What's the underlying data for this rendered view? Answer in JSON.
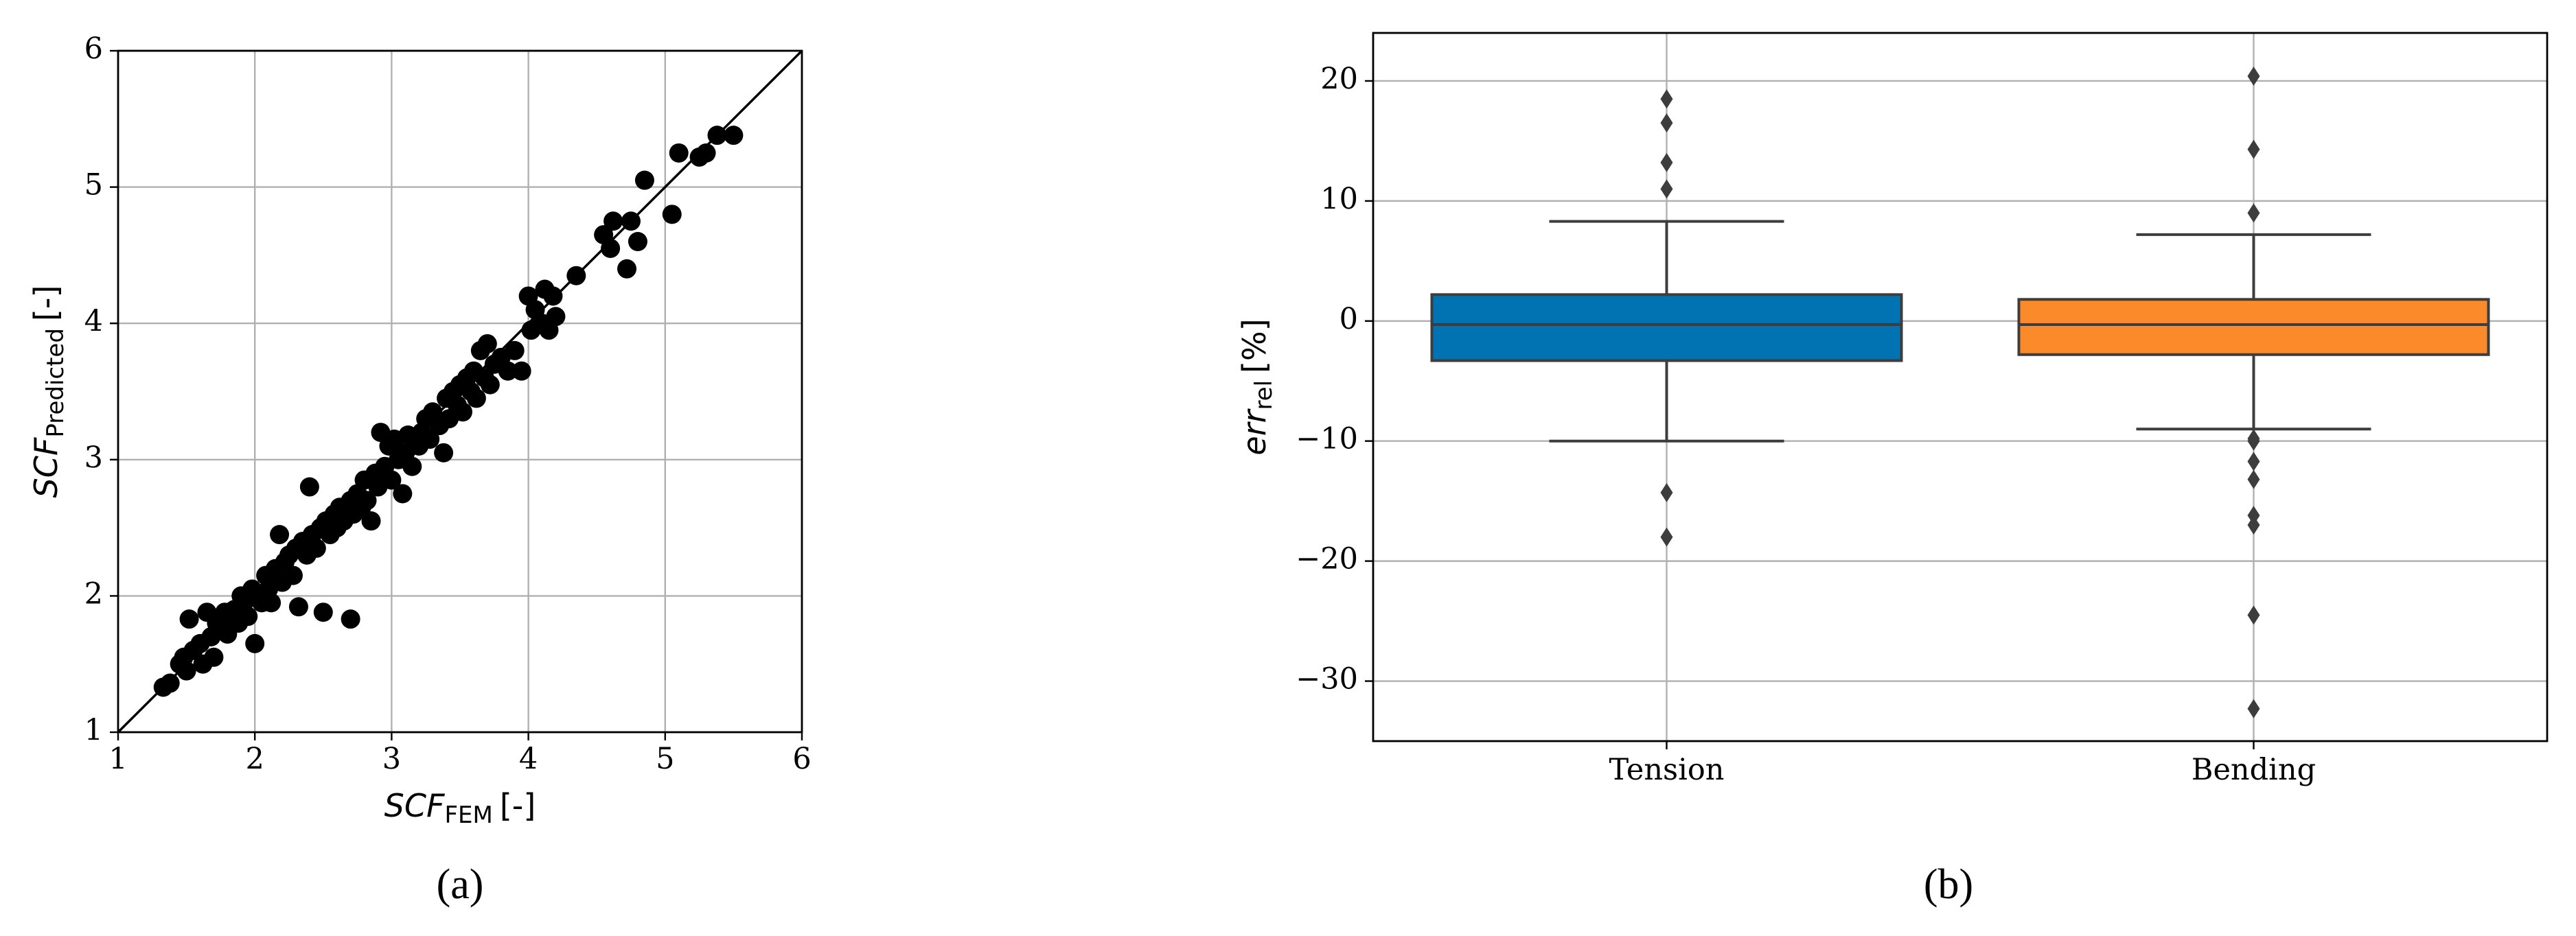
{
  "chart_data": [
    {
      "type": "scatter",
      "caption": "(a)",
      "x_label": {
        "main": "SCF",
        "sub": "FEM",
        "unit": "[-]"
      },
      "y_label": {
        "main": "SCF",
        "sub": "Predicted",
        "unit": "[-]"
      },
      "xlim": [
        1,
        6
      ],
      "ylim": [
        1,
        6
      ],
      "xticks": [
        1,
        2,
        3,
        4,
        5,
        6
      ],
      "yticks": [
        1,
        2,
        3,
        4,
        5,
        6
      ],
      "grid": true,
      "color": "#000000",
      "x": [
        1.33,
        1.38,
        1.45,
        1.48,
        1.5,
        1.52,
        1.55,
        1.6,
        1.62,
        1.65,
        1.68,
        1.7,
        1.72,
        1.75,
        1.78,
        1.8,
        1.82,
        1.85,
        1.88,
        1.9,
        1.92,
        1.95,
        1.98,
        2.0,
        2.02,
        2.05,
        2.08,
        2.1,
        2.12,
        2.15,
        2.18,
        2.2,
        2.22,
        2.25,
        2.28,
        2.3,
        2.32,
        2.35,
        2.38,
        2.4,
        2.42,
        2.45,
        2.48,
        2.5,
        2.52,
        2.55,
        2.58,
        2.6,
        2.62,
        2.65,
        2.7,
        2.7,
        2.72,
        2.75,
        2.78,
        2.8,
        2.82,
        2.85,
        2.88,
        2.9,
        2.92,
        2.95,
        2.98,
        3.0,
        3.02,
        3.05,
        3.08,
        3.1,
        3.12,
        3.15,
        3.2,
        3.22,
        3.25,
        3.28,
        3.3,
        3.35,
        3.38,
        3.4,
        3.42,
        3.45,
        3.48,
        3.5,
        3.52,
        3.55,
        3.58,
        3.6,
        3.62,
        3.65,
        3.68,
        3.7,
        3.72,
        3.75,
        3.8,
        3.85,
        3.9,
        3.95,
        4.0,
        4.02,
        4.05,
        4.1,
        4.12,
        4.15,
        4.18,
        4.2,
        4.35,
        4.55,
        4.6,
        4.62,
        4.72,
        4.75,
        4.8,
        4.85,
        5.05,
        5.1,
        5.25,
        5.3,
        5.38,
        5.5
      ],
      "values": [
        1.33,
        1.36,
        1.5,
        1.55,
        1.45,
        1.83,
        1.6,
        1.65,
        1.5,
        1.88,
        1.7,
        1.55,
        1.8,
        1.75,
        1.88,
        1.72,
        1.85,
        1.9,
        1.8,
        2.0,
        1.95,
        1.85,
        2.05,
        1.65,
        2.0,
        1.95,
        2.15,
        2.05,
        1.95,
        2.2,
        2.45,
        2.1,
        2.25,
        2.3,
        2.15,
        2.35,
        1.92,
        2.4,
        2.3,
        2.8,
        2.45,
        2.35,
        2.5,
        1.88,
        2.55,
        2.45,
        2.6,
        2.5,
        2.65,
        2.55,
        1.83,
        2.7,
        2.6,
        2.75,
        2.65,
        2.85,
        2.7,
        2.55,
        2.9,
        2.8,
        3.2,
        2.95,
        3.1,
        2.85,
        3.15,
        3.0,
        2.75,
        3.05,
        3.18,
        2.95,
        3.1,
        3.2,
        3.3,
        3.15,
        3.35,
        3.25,
        3.05,
        3.45,
        3.3,
        3.5,
        3.4,
        3.55,
        3.35,
        3.6,
        3.5,
        3.65,
        3.45,
        3.8,
        3.6,
        3.85,
        3.55,
        3.7,
        3.75,
        3.65,
        3.8,
        3.65,
        4.2,
        3.95,
        4.1,
        4.0,
        4.25,
        3.95,
        4.2,
        4.05,
        4.35,
        4.65,
        4.55,
        4.75,
        4.4,
        4.75,
        4.6,
        5.05,
        4.8,
        5.25,
        5.22,
        5.25,
        5.38,
        5.38
      ]
    },
    {
      "type": "box",
      "caption": "(b)",
      "y_label": {
        "main": "err",
        "sub": "rel",
        "unit": "[%]"
      },
      "ylim": [
        -35,
        24
      ],
      "yticks": [
        {
          "value": -30,
          "label": "−30"
        },
        {
          "value": -20,
          "label": "−20"
        },
        {
          "value": -10,
          "label": "−10"
        },
        0,
        10,
        20
      ],
      "grid": true,
      "boxes": [
        {
          "name": "Tension",
          "color": "#0173b2",
          "whisker_low": -10,
          "q1": -3.3,
          "median": -0.3,
          "q3": 2.2,
          "whisker_high": 8.3,
          "outliers": [
            11,
            13.2,
            16.5,
            18.5,
            -14.3,
            -18
          ]
        },
        {
          "name": "Bending",
          "color": "#fb8a2a",
          "whisker_low": -9,
          "q1": -2.8,
          "median": -0.3,
          "q3": 1.8,
          "whisker_high": 7.2,
          "outliers": [
            9,
            14.3,
            20.4,
            -9.8,
            -10,
            -11.7,
            -13.2,
            -16.2,
            -17,
            -24.5,
            -32.3
          ]
        }
      ]
    }
  ]
}
